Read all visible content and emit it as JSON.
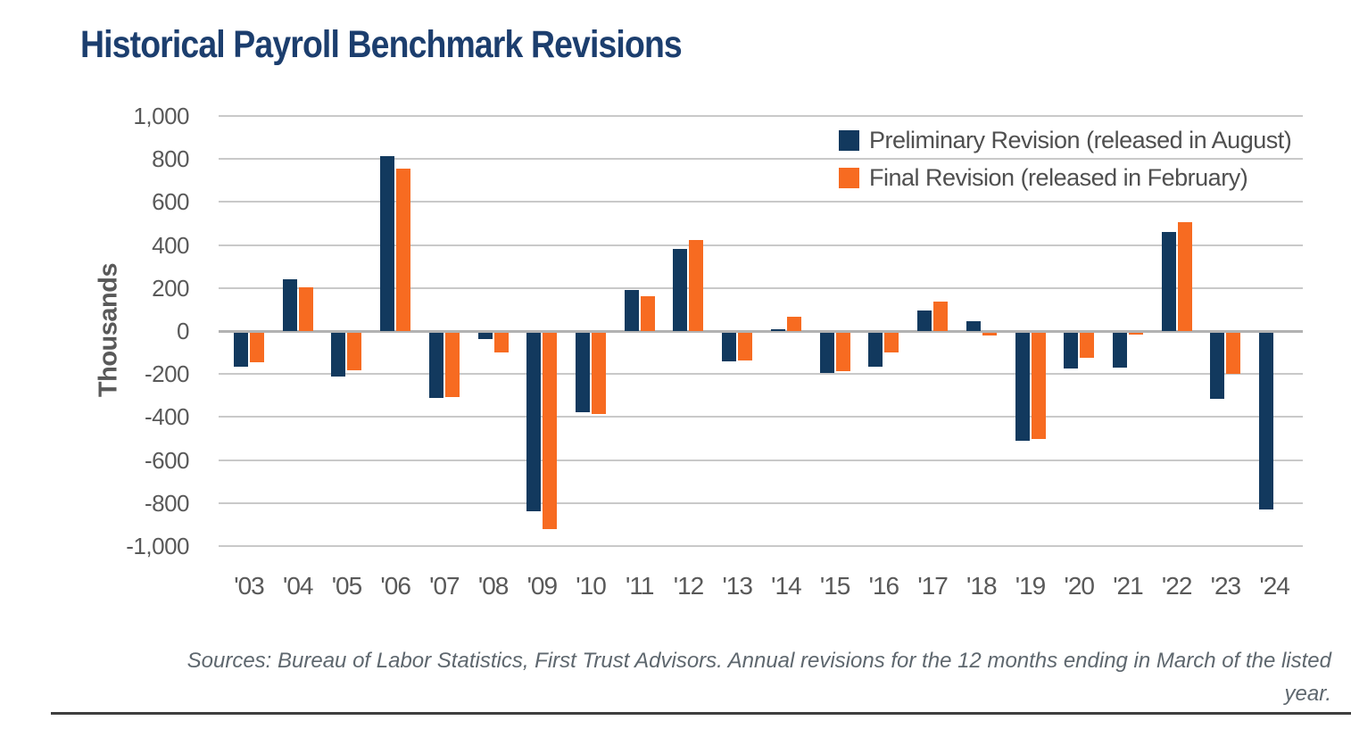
{
  "page": {
    "title": "Historical Payroll Benchmark Revisions"
  },
  "colors": {
    "title_text": "#1C3E6E",
    "preliminary_bar": "#12395E",
    "final_bar": "#F76B21",
    "gridline": "#C9C9C9",
    "zero_line": "#B2B2B2",
    "axis_text": "#595959",
    "legend_text": "#4F4F4F",
    "source_text": "#5E676E",
    "bottom_rule": "#3F3F3F"
  },
  "legend": {
    "items": [
      {
        "label": "Preliminary Revision (released in August)",
        "color": "#12395E"
      },
      {
        "label": "Final Revision (released in February)",
        "color": "#F76B21"
      }
    ]
  },
  "y_axis": {
    "label": "Thousands",
    "ticks": [
      "1,000",
      "800",
      "600",
      "400",
      "200",
      "0",
      "-200",
      "-400",
      "-600",
      "-800",
      "-1,000"
    ]
  },
  "source_note": {
    "line1": "Sources: Bureau of Labor Statistics, First Trust Advisors. Annual revisions for the 12 months ending in March of the listed",
    "line2": "year."
  },
  "chart_data": {
    "type": "bar",
    "title": "Historical Payroll Benchmark Revisions",
    "xlabel": "",
    "ylabel": "Thousands",
    "units": "thousands of jobs",
    "ylim": [
      -1000,
      1000
    ],
    "ytick_step": 200,
    "grid": true,
    "legend_position": "top-right",
    "categories": [
      "'03",
      "'04",
      "'05",
      "'06",
      "'07",
      "'08",
      "'09",
      "'10",
      "'11",
      "'12",
      "'13",
      "'14",
      "'15",
      "'16",
      "'17",
      "'18",
      "'19",
      "'20",
      "'21",
      "'22",
      "'23",
      "'24"
    ],
    "series": [
      {
        "name": "Preliminary Revision (released in August)",
        "color": "#12395E",
        "values": [
          -160,
          240,
          -205,
          815,
          -305,
          -30,
          -830,
          -370,
          190,
          380,
          -135,
          10,
          -190,
          -160,
          95,
          45,
          -505,
          -170,
          -165,
          460,
          -310,
          -825
        ]
      },
      {
        "name": "Final Revision (released in February)",
        "color": "#F76B21",
        "values": [
          -140,
          205,
          -175,
          755,
          -300,
          -95,
          -915,
          -380,
          160,
          425,
          -130,
          65,
          -180,
          -95,
          135,
          -15,
          -495,
          -120,
          -10,
          505,
          -195,
          null
        ]
      }
    ]
  }
}
